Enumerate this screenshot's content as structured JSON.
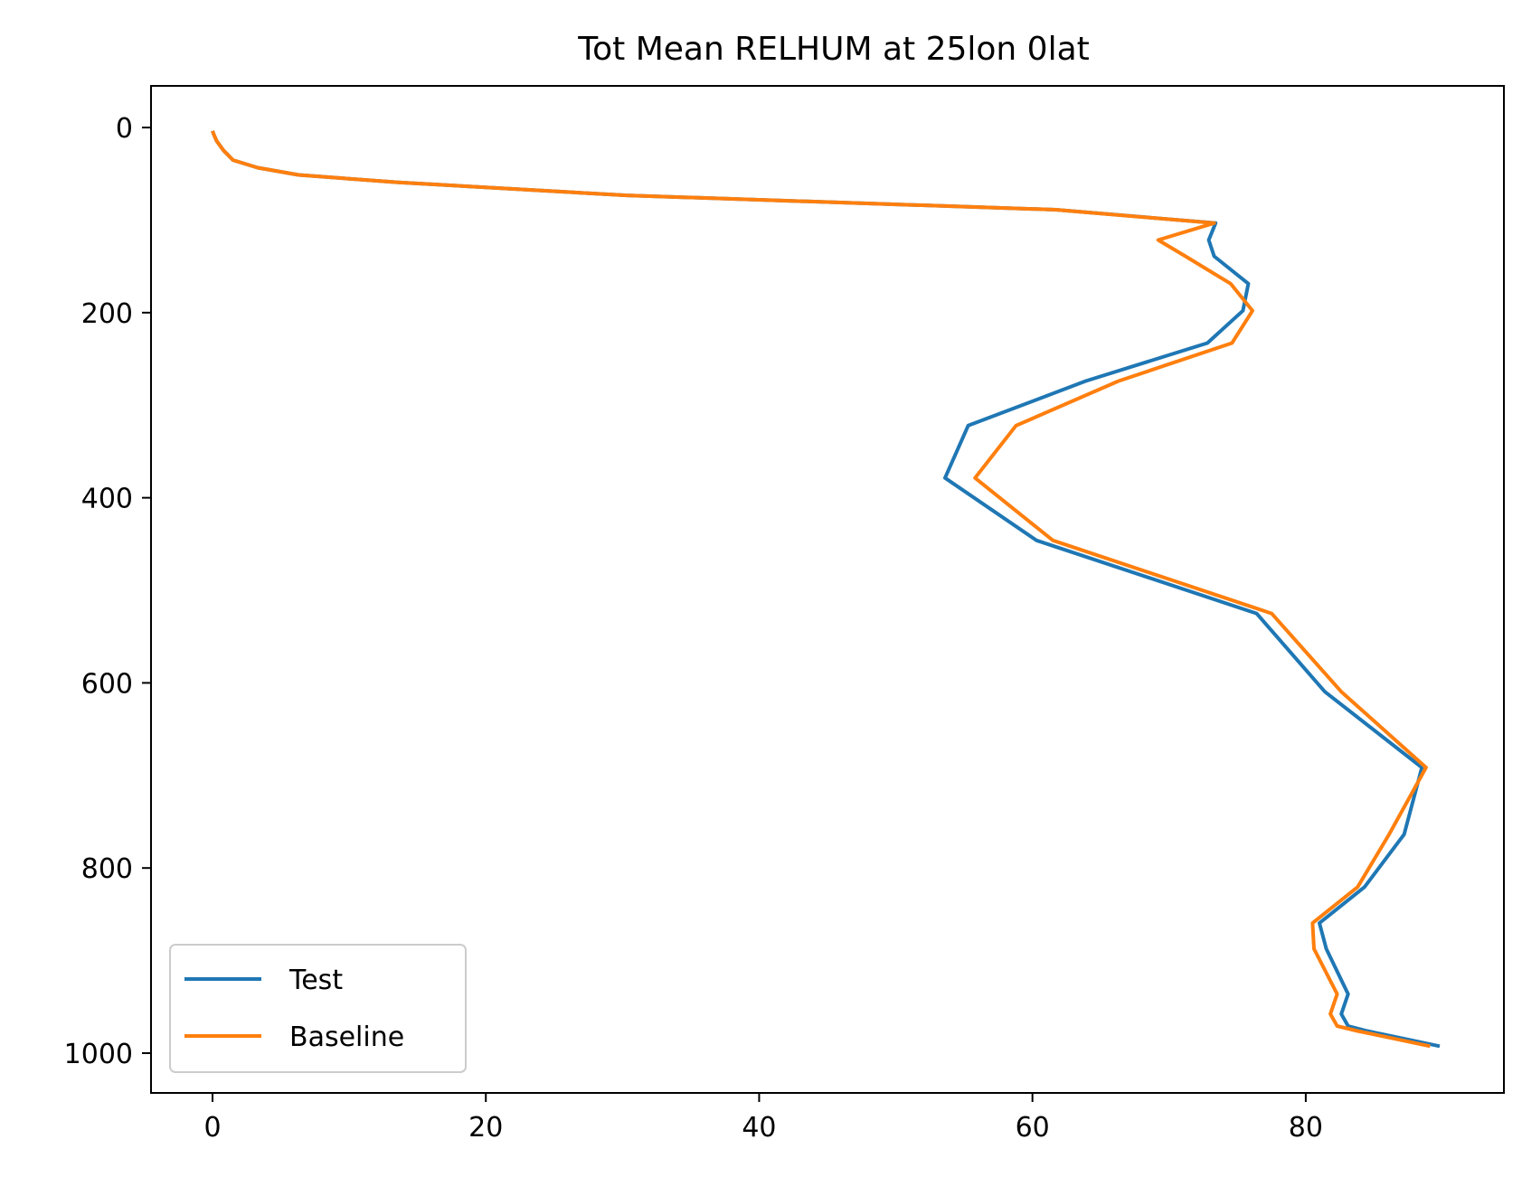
{
  "chart_data": {
    "type": "line",
    "title": "Tot Mean RELHUM at 25lon 0lat",
    "xlabel": "",
    "ylabel": "",
    "xlim": [
      -4.5,
      94.5
    ],
    "ylim": [
      1043,
      -45
    ],
    "y_inverted": true,
    "grid": false,
    "legend_position": "lower-left",
    "x_ticks": [
      0,
      20,
      40,
      60,
      80
    ],
    "y_ticks": [
      0,
      200,
      400,
      600,
      800,
      1000
    ],
    "series": [
      {
        "name": "Test",
        "color": "#1f77b4",
        "points": [
          [
            0.0,
            3.6
          ],
          [
            0.1,
            7.6
          ],
          [
            0.3,
            14.4
          ],
          [
            0.8,
            24.6
          ],
          [
            1.5,
            35.2
          ],
          [
            3.3,
            43.4
          ],
          [
            6.3,
            51.2
          ],
          [
            13.6,
            59.3
          ],
          [
            30.3,
            73.3
          ],
          [
            61.7,
            88.8
          ],
          [
            73.4,
            103.3
          ],
          [
            72.9,
            121.5
          ],
          [
            73.3,
            139.1
          ],
          [
            75.8,
            168.7
          ],
          [
            75.4,
            197.9
          ],
          [
            72.8,
            232.9
          ],
          [
            63.9,
            273.9
          ],
          [
            55.3,
            322.0
          ],
          [
            53.6,
            378.6
          ],
          [
            60.3,
            446.1
          ],
          [
            76.4,
            525.0
          ],
          [
            81.4,
            609.6
          ],
          [
            88.5,
            691.4
          ],
          [
            87.2,
            763.6
          ],
          [
            84.3,
            820.5
          ],
          [
            81.0,
            859.5
          ],
          [
            81.5,
            887.3
          ],
          [
            83.1,
            936.2
          ],
          [
            82.6,
            957.7
          ],
          [
            83.1,
            970.7
          ],
          [
            84.5,
            976.1
          ],
          [
            89.8,
            992.5
          ]
        ]
      },
      {
        "name": "Baseline",
        "color": "#ff7f0e",
        "points": [
          [
            0.0,
            3.6
          ],
          [
            0.1,
            7.6
          ],
          [
            0.3,
            14.4
          ],
          [
            0.8,
            24.6
          ],
          [
            1.5,
            35.2
          ],
          [
            3.3,
            43.4
          ],
          [
            6.3,
            51.2
          ],
          [
            13.6,
            59.3
          ],
          [
            30.3,
            73.3
          ],
          [
            61.7,
            88.8
          ],
          [
            73.3,
            103.3
          ],
          [
            69.2,
            121.5
          ],
          [
            71.2,
            139.1
          ],
          [
            74.5,
            168.7
          ],
          [
            76.1,
            197.9
          ],
          [
            74.6,
            232.9
          ],
          [
            66.3,
            273.9
          ],
          [
            58.8,
            322.0
          ],
          [
            55.8,
            378.6
          ],
          [
            61.5,
            446.1
          ],
          [
            77.5,
            525.0
          ],
          [
            82.6,
            609.6
          ],
          [
            88.8,
            691.4
          ],
          [
            86.1,
            763.6
          ],
          [
            83.8,
            820.5
          ],
          [
            80.5,
            859.5
          ],
          [
            80.6,
            887.3
          ],
          [
            82.3,
            936.2
          ],
          [
            81.8,
            957.7
          ],
          [
            82.3,
            970.7
          ],
          [
            83.8,
            976.1
          ],
          [
            89.1,
            992.5
          ]
        ]
      }
    ]
  }
}
